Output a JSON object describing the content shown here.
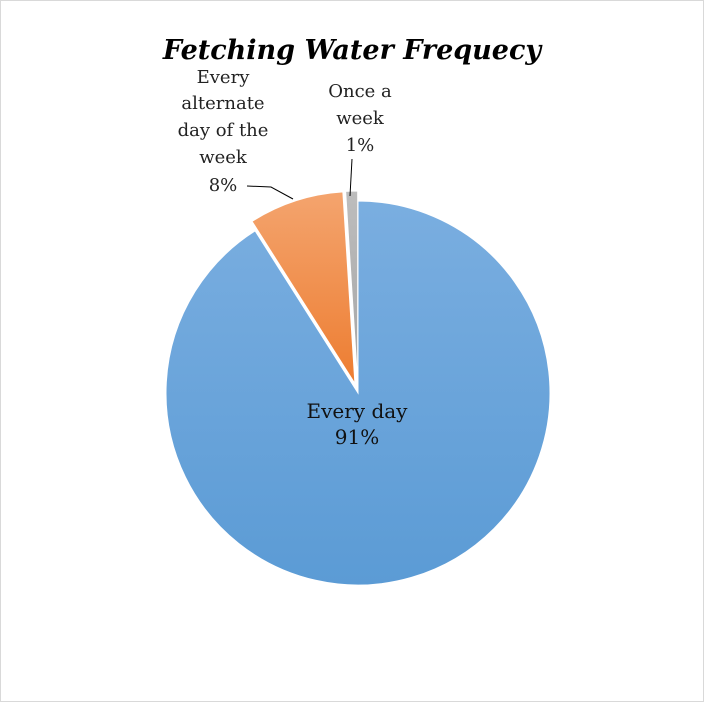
{
  "chart_data": {
    "type": "pie",
    "title": "Fetching Water Frequecy",
    "start_angle_deg": 0,
    "direction": "clockwise",
    "slices": [
      {
        "name": "Every day",
        "value": 91,
        "label": "91%",
        "color": "#5B9BD5",
        "color_light": "#7AAEE0",
        "exploded": false
      },
      {
        "name": "Every alternate day of the week",
        "label_lines": [
          "Every",
          "alternate",
          "day of the",
          "week"
        ],
        "value": 8,
        "label": "8%",
        "color": "#ED7D31",
        "color_light": "#F4A46E",
        "exploded": true
      },
      {
        "name": "Once a week",
        "label_lines": [
          "Once a",
          "week"
        ],
        "value": 1,
        "label": "1%",
        "color": "#A5A5A5",
        "color_light": "#BDBDBD",
        "exploded": true
      }
    ],
    "legend": "none"
  }
}
